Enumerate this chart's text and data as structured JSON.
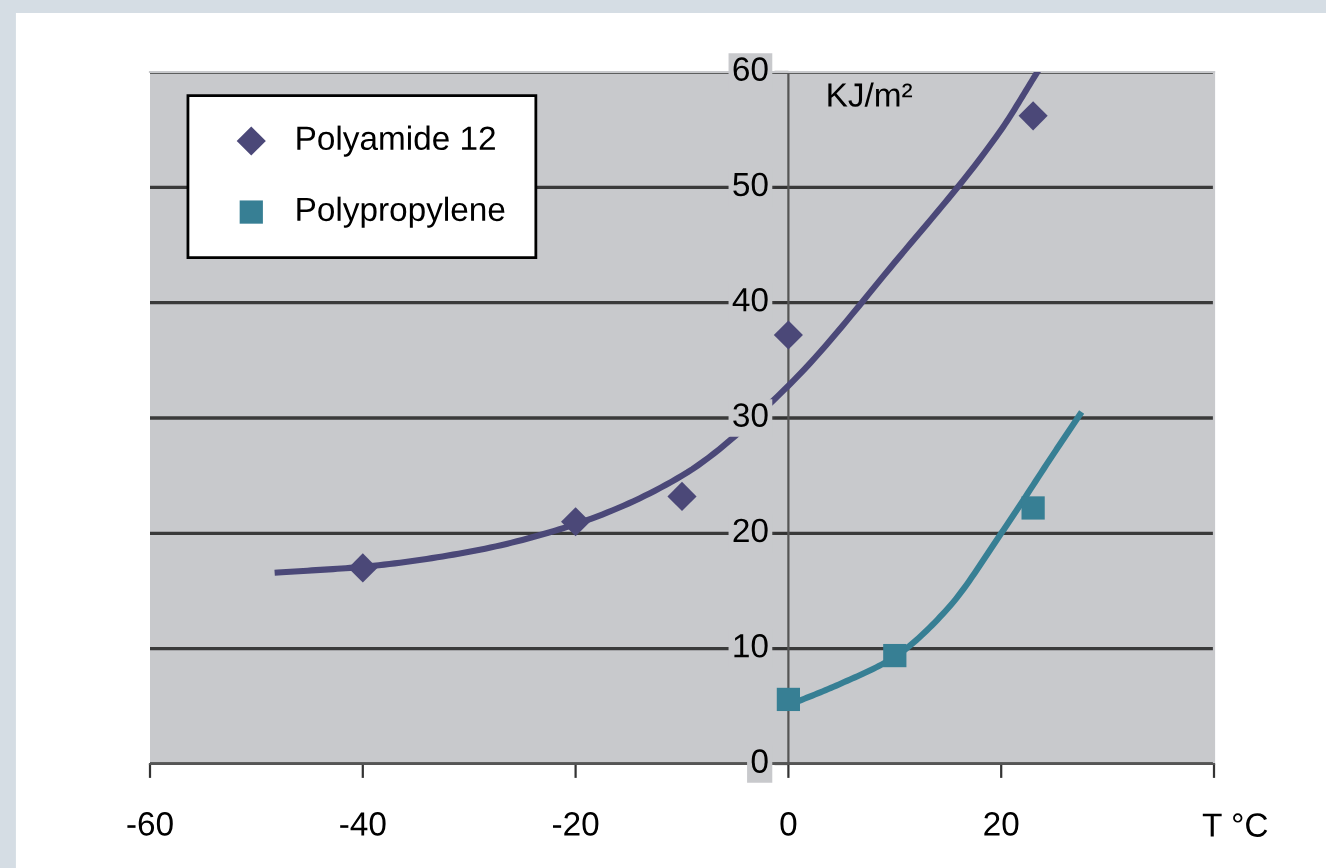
{
  "chart_data": {
    "type": "scatter",
    "xlabel": "T °C",
    "ylabel": "KJ/m²",
    "xlim": [
      -60,
      40
    ],
    "xticks": [
      -60,
      -40,
      -20,
      0,
      20,
      {
        "value": 40,
        "label": null
      }
    ],
    "ylim": [
      0,
      60
    ],
    "yticks": [
      0,
      10,
      20,
      30,
      40,
      50,
      60
    ],
    "grid": "y",
    "legend": "top left",
    "series": [
      {
        "name": "Polyamide 12",
        "color": "#4b4878",
        "marker": "diamond",
        "x": [
          -40,
          -20,
          -10,
          0,
          23
        ],
        "values": [
          17,
          21,
          23.2,
          37.2,
          56.2
        ]
      },
      {
        "name": "Polypropylene",
        "color": "#377f94",
        "marker": "square",
        "x": [
          0,
          10,
          23
        ],
        "values": [
          5.6,
          9.4,
          22.2
        ]
      },
      {
        "type": "line",
        "color": "#4b4878",
        "marker": "none",
        "x": [
          -48,
          -40,
          -30,
          -20,
          -10,
          0,
          10,
          20,
          23.4
        ],
        "values": [
          16.6,
          17.1,
          18.4,
          20.8,
          25,
          32.8,
          43.5,
          55,
          60
        ]
      },
      {
        "type": "line",
        "color": "#377f94",
        "marker": "none",
        "x": [
          0,
          5,
          10,
          15,
          20,
          25,
          27.4
        ],
        "values": [
          5.1,
          7,
          9.3,
          13.5,
          20,
          27,
          30.3
        ]
      }
    ]
  }
}
